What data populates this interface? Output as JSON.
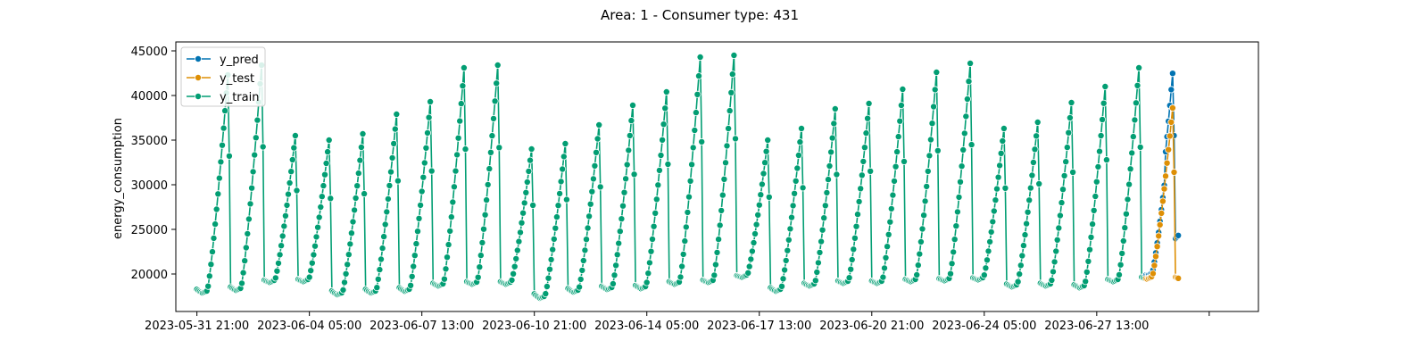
{
  "chart_data": {
    "type": "line",
    "title": "Area: 1 - Consumer type: 431",
    "xlabel": "",
    "ylabel": "energy_consumption",
    "ylim": [
      15800,
      46000
    ],
    "xlim_hours": [
      -15,
      755
    ],
    "yticks": [
      20000,
      25000,
      30000,
      35000,
      40000,
      45000
    ],
    "xticks": [
      {
        "hours": 0,
        "label": "2023-05-31 21:00"
      },
      {
        "hours": 80,
        "label": "2023-06-04 05:00"
      },
      {
        "hours": 160,
        "label": "2023-06-07 13:00"
      },
      {
        "hours": 240,
        "label": "2023-06-10 21:00"
      },
      {
        "hours": 320,
        "label": "2023-06-14 05:00"
      },
      {
        "hours": 400,
        "label": "2023-06-17 13:00"
      },
      {
        "hours": 480,
        "label": "2023-06-20 21:00"
      },
      {
        "hours": 560,
        "label": "2023-06-24 05:00"
      },
      {
        "hours": 640,
        "label": "2023-06-27 13:00"
      },
      {
        "hours": 720,
        "label": ""
      }
    ],
    "legend": {
      "position": "top-left",
      "entries": [
        "y_pred",
        "y_test",
        "y_train"
      ]
    },
    "grid": false,
    "start": "2023-05-31 21:00",
    "step_hours": 1,
    "daily_peaks": [
      42300,
      43400,
      35500,
      35000,
      35700,
      37900,
      39300,
      43100,
      43400,
      34000,
      34600,
      36700,
      38900,
      40400,
      44300,
      44500,
      35000,
      36300,
      38500,
      39100,
      40700,
      42600,
      43600,
      36300,
      37000,
      39200,
      41000,
      43100,
      38600
    ],
    "daily_troughs": [
      17800,
      18100,
      19000,
      19100,
      17600,
      17800,
      18000,
      18600,
      18800,
      18800,
      17200,
      17900,
      18200,
      18300,
      18800,
      19000,
      19600,
      18000,
      18600,
      18900,
      18900,
      19100,
      19200,
      19300,
      18500,
      18600,
      18400,
      19100,
      19400
    ],
    "series": [
      {
        "name": "y_train",
        "color": "#029e73",
        "start_hours": 0,
        "end_hours": 674
      },
      {
        "name": "y_test",
        "color": "#de8f05",
        "start_hours": 675,
        "end_hours": 698
      },
      {
        "name": "y_pred",
        "color": "#0173b2",
        "start_hours": 675,
        "end_hours": 698
      }
    ]
  }
}
